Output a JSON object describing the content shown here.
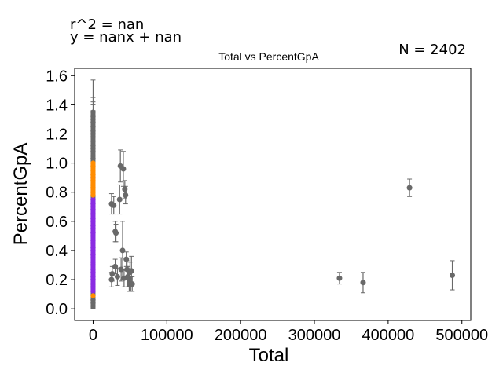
{
  "annotations": {
    "r_squared": "r^2 = nan",
    "equation": "y = nanx + nan",
    "n_count": "N = 2402"
  },
  "chart_data": {
    "type": "scatter",
    "title": "Total vs PercentGpA",
    "xlabel": "Total",
    "ylabel": "PercentGpA",
    "xlim": [
      -25000,
      512000
    ],
    "ylim": [
      -0.08,
      1.65
    ],
    "xticks": [
      0,
      100000,
      200000,
      300000,
      400000,
      500000
    ],
    "xtick_labels": [
      "0",
      "100000",
      "200000",
      "300000",
      "400000",
      "500000"
    ],
    "yticks": [
      0.0,
      0.2,
      0.4,
      0.6,
      0.8,
      1.0,
      1.2,
      1.4,
      1.6
    ],
    "ytick_labels": [
      "0.0",
      "0.2",
      "0.4",
      "0.6",
      "0.8",
      "1.0",
      "1.2",
      "1.4",
      "1.6"
    ],
    "grid": false,
    "legend": "none",
    "colors": {
      "gray": "#696969",
      "orange": "#ff8c00",
      "purple": "#8a2be2"
    },
    "series": [
      {
        "color": "gray",
        "points": [
          {
            "x": 25000,
            "y": 0.72,
            "err": 0.07
          },
          {
            "x": 28000,
            "y": 0.71,
            "err": 0.06
          },
          {
            "x": 25000,
            "y": 0.2,
            "err": 0.05
          },
          {
            "x": 26000,
            "y": 0.24,
            "err": 0.05
          },
          {
            "x": 30000,
            "y": 0.53,
            "err": 0.07
          },
          {
            "x": 31000,
            "y": 0.52,
            "err": 0.06
          },
          {
            "x": 30000,
            "y": 0.29,
            "err": 0.05
          },
          {
            "x": 33000,
            "y": 0.22,
            "err": 0.06
          },
          {
            "x": 36000,
            "y": 0.75,
            "err": 0.1
          },
          {
            "x": 37000,
            "y": 0.98,
            "err": 0.11
          },
          {
            "x": 38000,
            "y": 0.27,
            "err": 0.08
          },
          {
            "x": 40000,
            "y": 0.4,
            "err": 0.2
          },
          {
            "x": 41000,
            "y": 0.96,
            "err": 0.12
          },
          {
            "x": 42000,
            "y": 0.21,
            "err": 0.06
          },
          {
            "x": 43000,
            "y": 0.82,
            "err": 0.06
          },
          {
            "x": 44000,
            "y": 0.78,
            "err": 0.06
          },
          {
            "x": 45000,
            "y": 0.34,
            "err": 0.05
          },
          {
            "x": 46000,
            "y": 0.27,
            "err": 0.06
          },
          {
            "x": 47000,
            "y": 0.22,
            "err": 0.07
          },
          {
            "x": 48000,
            "y": 0.21,
            "err": 0.06
          },
          {
            "x": 49000,
            "y": 0.17,
            "err": 0.05
          },
          {
            "x": 50000,
            "y": 0.25,
            "err": 0.07
          },
          {
            "x": 51000,
            "y": 0.17,
            "err": 0.05
          },
          {
            "x": 52000,
            "y": 0.26,
            "err": 0.1
          },
          {
            "x": 53000,
            "y": 0.17,
            "err": 0.05
          },
          {
            "x": 334000,
            "y": 0.21,
            "err": 0.04
          },
          {
            "x": 366000,
            "y": 0.18,
            "err": 0.07
          },
          {
            "x": 429000,
            "y": 0.83,
            "err": 0.06
          },
          {
            "x": 487000,
            "y": 0.23,
            "err": 0.1
          }
        ]
      }
    ],
    "x0_column": {
      "x": 0,
      "gray_range": [
        0.0,
        1.57
      ],
      "errorbar_tops": [
        1.57,
        1.45,
        1.42,
        1.4,
        1.36,
        1.3,
        1.25
      ],
      "gray_y": [
        1.35,
        1.32,
        1.3,
        1.28,
        1.25,
        1.22,
        1.2,
        1.18,
        1.15,
        1.12,
        1.1,
        1.08,
        1.05,
        1.03,
        0.02,
        0.04,
        0.06
      ],
      "orange_y": [
        1.0,
        0.98,
        0.95,
        0.92,
        0.88,
        0.85,
        0.83,
        0.8,
        0.78,
        0.09
      ],
      "purple_y": [
        0.9,
        0.75,
        0.72,
        0.7,
        0.68,
        0.65,
        0.62,
        0.6,
        0.57,
        0.55,
        0.52,
        0.5,
        0.47,
        0.45,
        0.42,
        0.4,
        0.37,
        0.35,
        0.32,
        0.3,
        0.27,
        0.25,
        0.22,
        0.2,
        0.17,
        0.15,
        0.12
      ]
    }
  }
}
